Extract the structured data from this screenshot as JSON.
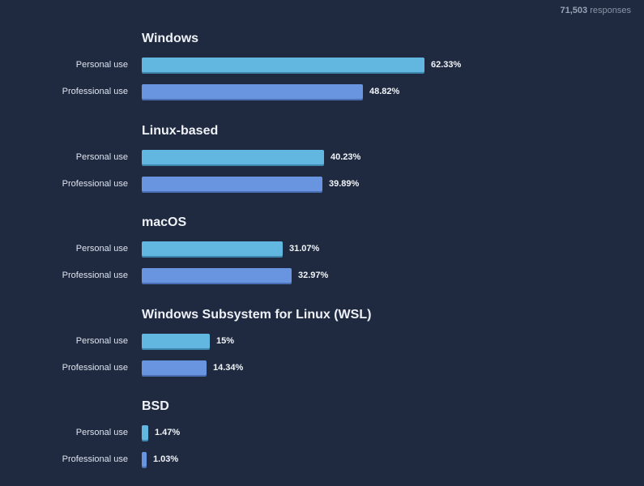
{
  "header": {
    "responses_count": "71,503",
    "responses_label": "responses"
  },
  "chart_data": {
    "type": "bar",
    "orientation": "horizontal",
    "groups": [
      "Windows",
      "Linux-based",
      "macOS",
      "Windows Subsystem for Linux (WSL)",
      "BSD"
    ],
    "series": [
      {
        "name": "Personal use",
        "color": "#62b7e1",
        "values": [
          62.33,
          40.23,
          31.07,
          15,
          1.47
        ],
        "labels": [
          "62.33%",
          "40.23%",
          "31.07%",
          "15%",
          "1.47%"
        ]
      },
      {
        "name": "Professional use",
        "color": "#6894e0",
        "values": [
          48.82,
          39.89,
          32.97,
          14.34,
          1.03
        ],
        "labels": [
          "48.82%",
          "39.89%",
          "32.97%",
          "14.34%",
          "1.03%"
        ]
      }
    ],
    "xlim": [
      0,
      100
    ],
    "grid": false
  }
}
